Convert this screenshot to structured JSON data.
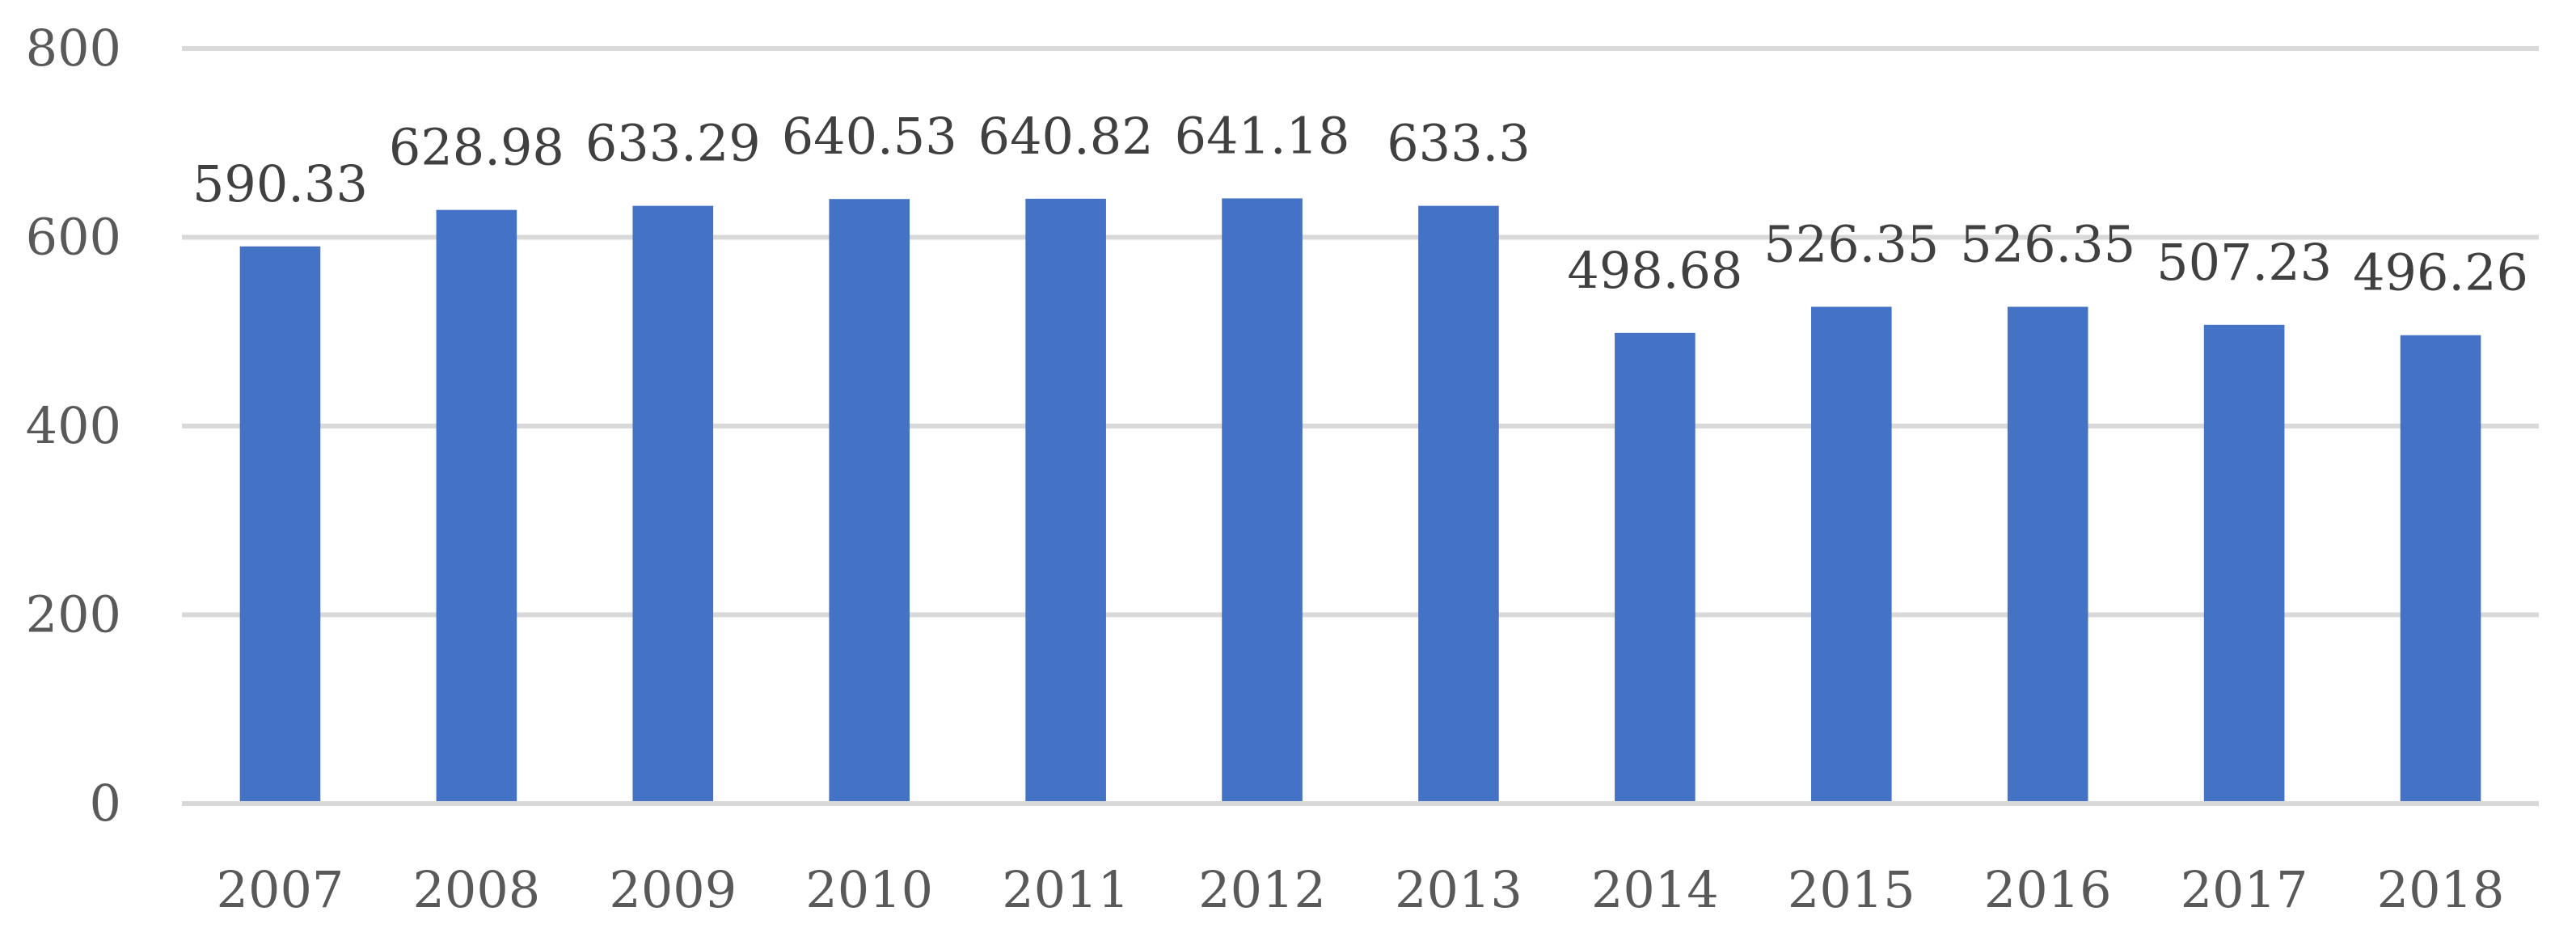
{
  "chart_data": {
    "type": "bar",
    "title": "",
    "xlabel": "",
    "ylabel": "",
    "categories": [
      "2007",
      "2008",
      "2009",
      "2010",
      "2011",
      "2012",
      "2013",
      "2014",
      "2015",
      "2016",
      "2017",
      "2018"
    ],
    "values": [
      590.33,
      628.98,
      633.29,
      640.53,
      640.82,
      641.18,
      633.3,
      498.68,
      526.35,
      526.35,
      507.23,
      496.26
    ],
    "data_labels": [
      "590.33",
      "628.98",
      "633.29",
      "640.53",
      "640.82",
      "641.18",
      "633.3",
      "498.68",
      "526.35",
      "526.35",
      "507.23",
      "496.26"
    ],
    "ylim": [
      0,
      800
    ],
    "yticks": [
      0,
      200,
      400,
      600,
      800
    ],
    "ytick_labels": [
      "0",
      "200",
      "400",
      "600",
      "800"
    ],
    "grid": true,
    "legend": "none",
    "bar_color": "#4472c4",
    "grid_color": "#d9d9d9",
    "axis_line_color": "#d9d9d9",
    "tick_label_color": "#595959",
    "data_label_color": "#404040"
  }
}
